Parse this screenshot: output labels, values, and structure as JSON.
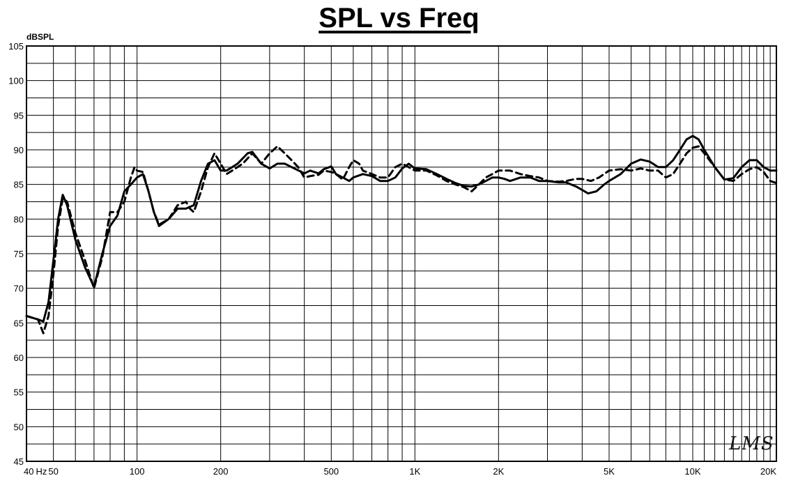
{
  "title": "SPL vs Freq",
  "ylabel": "dBSPL",
  "watermark": "LMS",
  "chart_data": {
    "type": "line",
    "title": "SPL vs Freq",
    "ylabel": "dBSPL",
    "xlabel": "",
    "xscale": "log",
    "xlim": [
      40,
      20000
    ],
    "ylim": [
      45,
      105
    ],
    "grid": true,
    "legend": "none",
    "y_ticks": [
      45,
      50,
      55,
      60,
      65,
      70,
      75,
      80,
      85,
      90,
      95,
      100,
      105
    ],
    "x_ticks": [
      {
        "value": 40,
        "label": "40"
      },
      {
        "value": 50,
        "label": "50"
      },
      {
        "value": 100,
        "label": "100"
      },
      {
        "value": 200,
        "label": "200"
      },
      {
        "value": 500,
        "label": "500"
      },
      {
        "value": 1000,
        "label": "1K"
      },
      {
        "value": 2000,
        "label": "2K"
      },
      {
        "value": 5000,
        "label": "5K"
      },
      {
        "value": 10000,
        "label": "10K"
      },
      {
        "value": 20000,
        "label": "20K"
      }
    ],
    "x_extra_label": {
      "value": 45,
      "label": "Hz"
    },
    "series": [
      {
        "style": "solid",
        "color": "#000000",
        "points": [
          [
            40,
            66
          ],
          [
            44,
            65.5
          ],
          [
            46,
            65.2
          ],
          [
            48,
            68
          ],
          [
            50,
            74
          ],
          [
            52,
            80
          ],
          [
            54,
            83.5
          ],
          [
            56,
            82
          ],
          [
            60,
            77
          ],
          [
            65,
            73
          ],
          [
            70,
            70.2
          ],
          [
            75,
            75
          ],
          [
            80,
            79
          ],
          [
            85,
            80.5
          ],
          [
            90,
            84
          ],
          [
            95,
            85
          ],
          [
            100,
            86
          ],
          [
            105,
            86.5
          ],
          [
            110,
            84
          ],
          [
            115,
            81
          ],
          [
            120,
            79
          ],
          [
            130,
            80
          ],
          [
            140,
            81.5
          ],
          [
            150,
            81.5
          ],
          [
            160,
            82
          ],
          [
            170,
            85.5
          ],
          [
            180,
            88
          ],
          [
            190,
            88.5
          ],
          [
            200,
            87
          ],
          [
            210,
            87
          ],
          [
            220,
            87.5
          ],
          [
            230,
            88
          ],
          [
            250,
            89.5
          ],
          [
            260,
            89.7
          ],
          [
            280,
            88
          ],
          [
            300,
            87.3
          ],
          [
            320,
            88
          ],
          [
            340,
            88
          ],
          [
            360,
            87.5
          ],
          [
            400,
            86.6
          ],
          [
            420,
            87
          ],
          [
            450,
            86.6
          ],
          [
            470,
            87.2
          ],
          [
            500,
            87.6
          ],
          [
            520,
            86.5
          ],
          [
            550,
            86
          ],
          [
            580,
            85.5
          ],
          [
            600,
            86
          ],
          [
            650,
            86.5
          ],
          [
            700,
            86.2
          ],
          [
            750,
            85.5
          ],
          [
            800,
            85.5
          ],
          [
            850,
            86
          ],
          [
            900,
            87.3
          ],
          [
            950,
            88
          ],
          [
            1000,
            87.3
          ],
          [
            1100,
            87.2
          ],
          [
            1200,
            86.5
          ],
          [
            1300,
            85.8
          ],
          [
            1400,
            85.2
          ],
          [
            1500,
            84.8
          ],
          [
            1600,
            84.7
          ],
          [
            1700,
            85
          ],
          [
            1800,
            85.5
          ],
          [
            1900,
            86
          ],
          [
            2000,
            86
          ],
          [
            2100,
            85.8
          ],
          [
            2200,
            85.5
          ],
          [
            2400,
            86
          ],
          [
            2600,
            86
          ],
          [
            2800,
            85.5
          ],
          [
            3000,
            85.5
          ],
          [
            3300,
            85.3
          ],
          [
            3500,
            85.3
          ],
          [
            3800,
            84.7
          ],
          [
            4000,
            84.2
          ],
          [
            4200,
            83.7
          ],
          [
            4500,
            84
          ],
          [
            4800,
            85
          ],
          [
            5000,
            85.5
          ],
          [
            5500,
            86.5
          ],
          [
            6000,
            88
          ],
          [
            6500,
            88.6
          ],
          [
            7000,
            88.3
          ],
          [
            7500,
            87.5
          ],
          [
            8000,
            87.5
          ],
          [
            8500,
            88.5
          ],
          [
            9000,
            90
          ],
          [
            9500,
            91.5
          ],
          [
            10000,
            92
          ],
          [
            10500,
            91.5
          ],
          [
            11000,
            90
          ],
          [
            12000,
            87.5
          ],
          [
            13000,
            85.7
          ],
          [
            14000,
            85.9
          ],
          [
            15000,
            87.5
          ],
          [
            16000,
            88.5
          ],
          [
            17000,
            88.5
          ],
          [
            18000,
            87.5
          ],
          [
            19000,
            87
          ],
          [
            20000,
            87
          ]
        ]
      },
      {
        "style": "dashed",
        "color": "#000000",
        "points": [
          [
            40,
            66
          ],
          [
            44,
            65.5
          ],
          [
            46,
            63.5
          ],
          [
            48,
            66
          ],
          [
            50,
            72
          ],
          [
            52,
            79
          ],
          [
            54,
            83
          ],
          [
            56,
            82.5
          ],
          [
            60,
            78
          ],
          [
            65,
            74
          ],
          [
            70,
            70
          ],
          [
            75,
            74.5
          ],
          [
            80,
            81
          ],
          [
            85,
            81
          ],
          [
            90,
            82.5
          ],
          [
            95,
            86
          ],
          [
            98,
            87.5
          ],
          [
            100,
            87
          ],
          [
            105,
            86.8
          ],
          [
            110,
            84
          ],
          [
            115,
            81
          ],
          [
            120,
            79.2
          ],
          [
            130,
            80
          ],
          [
            140,
            82
          ],
          [
            150,
            82.5
          ],
          [
            155,
            81.5
          ],
          [
            160,
            81
          ],
          [
            170,
            84
          ],
          [
            180,
            87.5
          ],
          [
            190,
            89.5
          ],
          [
            200,
            88
          ],
          [
            210,
            86.5
          ],
          [
            220,
            87
          ],
          [
            240,
            88
          ],
          [
            260,
            89.5
          ],
          [
            280,
            88
          ],
          [
            300,
            89.5
          ],
          [
            320,
            90.5
          ],
          [
            340,
            89.5
          ],
          [
            360,
            88.5
          ],
          [
            380,
            87.5
          ],
          [
            400,
            86
          ],
          [
            420,
            86.2
          ],
          [
            450,
            86.4
          ],
          [
            470,
            87
          ],
          [
            500,
            86.8
          ],
          [
            520,
            86.5
          ],
          [
            550,
            85.7
          ],
          [
            580,
            87.5
          ],
          [
            600,
            88.5
          ],
          [
            630,
            88
          ],
          [
            650,
            87
          ],
          [
            700,
            86.5
          ],
          [
            750,
            86
          ],
          [
            800,
            86
          ],
          [
            850,
            87.5
          ],
          [
            900,
            88
          ],
          [
            950,
            87.5
          ],
          [
            1000,
            87
          ],
          [
            1100,
            87
          ],
          [
            1200,
            86.3
          ],
          [
            1300,
            85.5
          ],
          [
            1400,
            85
          ],
          [
            1500,
            84.6
          ],
          [
            1600,
            84
          ],
          [
            1700,
            85
          ],
          [
            1800,
            86
          ],
          [
            1900,
            86.5
          ],
          [
            2000,
            87
          ],
          [
            2200,
            87
          ],
          [
            2400,
            86.5
          ],
          [
            2600,
            86.2
          ],
          [
            2800,
            86
          ],
          [
            3000,
            85.5
          ],
          [
            3300,
            85.4
          ],
          [
            3500,
            85.5
          ],
          [
            3800,
            85.8
          ],
          [
            4000,
            85.8
          ],
          [
            4300,
            85.5
          ],
          [
            4600,
            86
          ],
          [
            5000,
            87
          ],
          [
            5500,
            87.2
          ],
          [
            6000,
            87
          ],
          [
            6500,
            87.3
          ],
          [
            7000,
            87
          ],
          [
            7500,
            87
          ],
          [
            8000,
            86
          ],
          [
            8500,
            86.5
          ],
          [
            9000,
            88
          ],
          [
            9500,
            89.5
          ],
          [
            10000,
            90.3
          ],
          [
            10500,
            90.5
          ],
          [
            11000,
            89.5
          ],
          [
            12000,
            87.5
          ],
          [
            13000,
            85.7
          ],
          [
            14000,
            85.5
          ],
          [
            15000,
            86.5
          ],
          [
            16000,
            87.2
          ],
          [
            17000,
            87.5
          ],
          [
            18000,
            86.8
          ],
          [
            19000,
            85.5
          ],
          [
            20000,
            85.2
          ]
        ]
      }
    ]
  }
}
